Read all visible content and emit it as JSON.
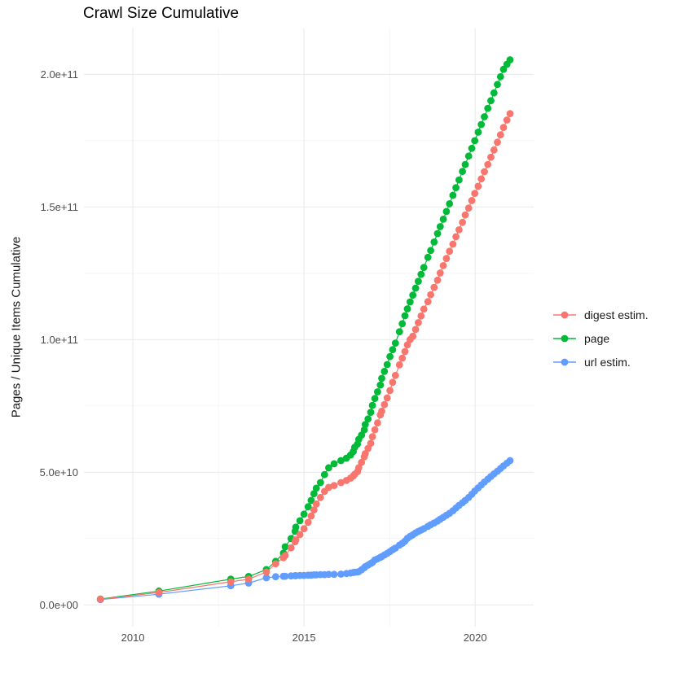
{
  "chart": {
    "title": "Crawl Size Cumulative",
    "y_axis_title": "Pages / Unique Items Cumulative"
  },
  "colors": {
    "background": "#ffffff",
    "grid_major": "#ebebeb",
    "grid_minor": "#f1f1f1",
    "tick_label": "#4d4d4d",
    "text": "#1a1a1a"
  },
  "chart_data": {
    "type": "scatter",
    "title": "Crawl Size Cumulative",
    "xlabel": "",
    "ylabel": "Pages / Unique Items Cumulative",
    "grid": true,
    "legend_position": "right",
    "xlim": [
      2008.57,
      2021.71
    ],
    "ylim_e9": [
      -8.2,
      217.3
    ],
    "x_ticks": [
      {
        "v": 2010,
        "label": "2010"
      },
      {
        "v": 2015,
        "label": "2015"
      },
      {
        "v": 2020,
        "label": "2020"
      }
    ],
    "x_minor_ticks": [
      2012.5,
      2017.5
    ],
    "y_ticks_e9": [
      {
        "v": 0,
        "label": "0.0e+00"
      },
      {
        "v": 50,
        "label": "5.0e+10"
      },
      {
        "v": 100,
        "label": "1.0e+11"
      },
      {
        "v": 150,
        "label": "1.5e+11"
      },
      {
        "v": 200,
        "label": "2.0e+11"
      }
    ],
    "y_minor_ticks_e9": [
      25,
      75,
      125,
      175
    ],
    "x": [
      2009.05,
      2010.76,
      2012.86,
      2013.38,
      2013.9,
      2014.17,
      2014.4,
      2014.45,
      2014.62,
      2014.74,
      2014.76,
      2014.88,
      2015.0,
      2015.12,
      2015.21,
      2015.29,
      2015.36,
      2015.48,
      2015.6,
      2015.72,
      2015.88,
      2016.08,
      2016.24,
      2016.36,
      2016.44,
      2016.48,
      2016.56,
      2016.6,
      2016.68,
      2016.76,
      2016.79,
      2016.87,
      2016.95,
      2017.0,
      2017.07,
      2017.15,
      2017.23,
      2017.27,
      2017.35,
      2017.43,
      2017.51,
      2017.59,
      2017.67,
      2017.79,
      2017.87,
      2017.95,
      2018.02,
      2018.1,
      2018.18,
      2018.26,
      2018.34,
      2018.42,
      2018.5,
      2018.62,
      2018.7,
      2018.8,
      2018.9,
      2018.98,
      2019.07,
      2019.16,
      2019.25,
      2019.35,
      2019.44,
      2019.53,
      2019.63,
      2019.71,
      2019.81,
      2019.9,
      2019.99,
      2020.09,
      2020.18,
      2020.27,
      2020.37,
      2020.46,
      2020.55,
      2020.65,
      2020.74,
      2020.83,
      2020.93,
      2021.02
    ],
    "series": [
      {
        "name": "digest estim.",
        "color": "#F8766D",
        "values_e9": [
          2.1,
          4.7,
          8.7,
          9.7,
          12.4,
          15.5,
          17.8,
          18.6,
          21.5,
          23.8,
          24.5,
          26.5,
          28.7,
          31.1,
          33.5,
          35.8,
          38.0,
          40.5,
          42.8,
          44.3,
          45.0,
          46.1,
          46.9,
          47.8,
          48.6,
          49.2,
          50.2,
          51.7,
          53.7,
          55.8,
          57.0,
          59.0,
          60.9,
          63.4,
          66.0,
          68.6,
          71.6,
          73.0,
          75.5,
          78.0,
          80.8,
          83.9,
          86.5,
          90.5,
          93.0,
          95.5,
          98.0,
          100.0,
          101.3,
          103.8,
          106.4,
          108.9,
          111.5,
          114.3,
          116.9,
          119.7,
          122.4,
          125.1,
          127.9,
          130.6,
          133.3,
          136.0,
          138.8,
          141.4,
          144.2,
          147.0,
          149.6,
          152.4,
          155.1,
          157.8,
          160.6,
          163.3,
          166.0,
          168.8,
          171.5,
          174.4,
          177.2,
          180.0,
          182.8,
          185.2
        ]
      },
      {
        "name": "page",
        "color": "#00BA38",
        "values_e9": [
          2.2,
          5.2,
          9.7,
          10.7,
          13.3,
          16.4,
          19.5,
          21.9,
          25.0,
          27.8,
          29.3,
          31.7,
          34.2,
          37.0,
          39.4,
          41.9,
          44.0,
          46.1,
          49.1,
          51.7,
          53.2,
          54.4,
          55.3,
          56.5,
          57.8,
          59.4,
          60.6,
          62.4,
          64.0,
          66.0,
          68.0,
          70.1,
          72.6,
          75.2,
          77.8,
          80.3,
          82.9,
          85.4,
          88.0,
          90.6,
          93.6,
          96.2,
          98.7,
          103.0,
          106.0,
          109.0,
          111.6,
          114.2,
          116.8,
          119.4,
          122.0,
          124.6,
          127.2,
          131.0,
          133.6,
          136.8,
          140.0,
          142.6,
          145.4,
          148.3,
          151.2,
          154.4,
          157.3,
          160.2,
          163.4,
          166.0,
          169.2,
          172.1,
          175.0,
          178.2,
          181.1,
          184.0,
          187.2,
          190.1,
          193.0,
          196.2,
          199.1,
          201.9,
          203.8,
          205.5
        ]
      },
      {
        "name": "url estim.",
        "color": "#619CFF",
        "values_e9": [
          2.0,
          4.0,
          7.2,
          8.2,
          10.2,
          10.6,
          10.8,
          10.8,
          10.9,
          11.0,
          11.0,
          11.1,
          11.1,
          11.2,
          11.2,
          11.3,
          11.3,
          11.4,
          11.4,
          11.5,
          11.5,
          11.6,
          11.8,
          12.0,
          12.2,
          12.3,
          12.4,
          12.5,
          13.2,
          14.0,
          14.4,
          15.0,
          15.6,
          16.0,
          16.9,
          17.4,
          17.9,
          18.2,
          18.8,
          19.4,
          20.1,
          20.8,
          21.4,
          22.5,
          23.2,
          24.0,
          25.1,
          25.8,
          26.4,
          27.1,
          27.7,
          28.2,
          28.7,
          29.6,
          30.2,
          30.9,
          31.6,
          32.3,
          33.0,
          33.8,
          34.5,
          35.5,
          36.5,
          37.5,
          38.5,
          39.4,
          40.5,
          41.7,
          42.9,
          44.1,
          45.2,
          46.3,
          47.4,
          48.4,
          49.4,
          50.4,
          51.4,
          52.4,
          53.4,
          54.4
        ]
      }
    ],
    "draw_order": [
      "url estim.",
      "page",
      "digest estim."
    ]
  }
}
